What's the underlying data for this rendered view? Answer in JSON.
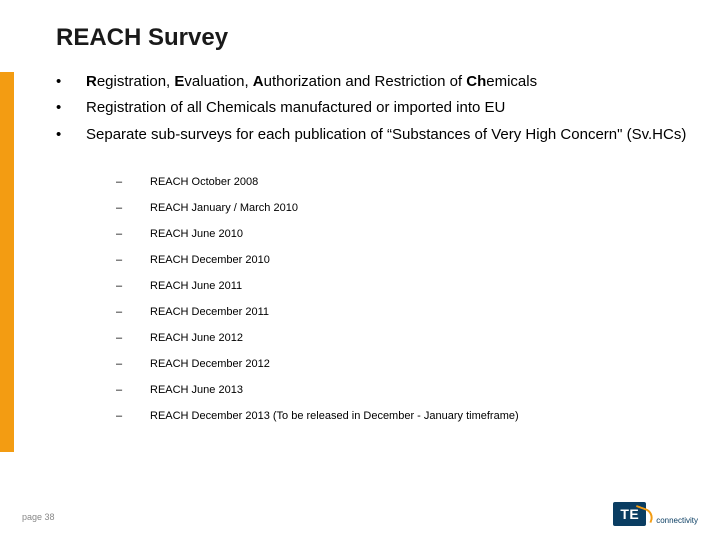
{
  "accent_color": "#f39c12",
  "title": "REACH Survey",
  "bullets": [
    {
      "text_html": "<b>R</b>egistration, <b>E</b>valuation, <b>A</b>uthorization and Restriction of <b>Ch</b>emicals"
    },
    {
      "text": "Registration of all Chemicals manufactured or imported into EU"
    },
    {
      "text": "Separate sub-surveys for each publication of “Substances of Very High Concern\" (Sv.HCs)"
    }
  ],
  "sub_items": [
    "REACH October 2008",
    "REACH January / March 2010",
    "REACH June 2010",
    "REACH December 2010",
    "REACH June 2011",
    "REACH December 2011",
    "REACH June 2012",
    "REACH December 2012",
    "REACH June 2013",
    "REACH December 2013 (To be released in December - January timeframe)"
  ],
  "page_label": "page 38",
  "logo": {
    "text": "TE",
    "sub": "connectivity",
    "bg": "#0a3d62",
    "swoosh": "#f39c12"
  }
}
